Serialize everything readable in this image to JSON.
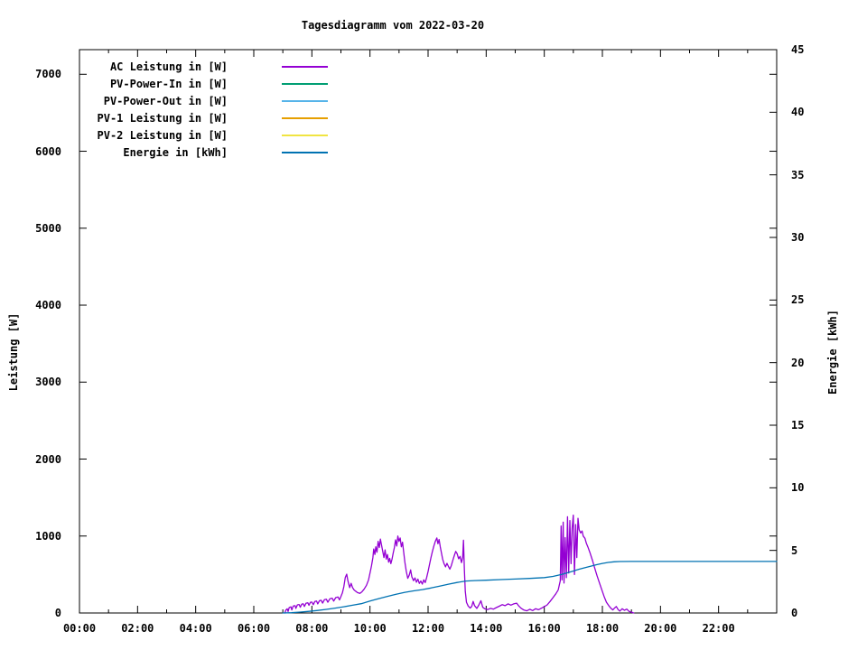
{
  "chart": {
    "title": "Tagesdiagramm vom 2022-03-20",
    "background_color": "#ffffff",
    "axis_color": "#000000"
  },
  "chart_data": {
    "type": "line",
    "title": "Tagesdiagramm vom 2022-03-20",
    "grid": false,
    "x_axis": {
      "unit": "time",
      "range_hours": [
        0,
        24
      ],
      "major_tick_every_hours": 2,
      "minor_tick_every_hours": 1,
      "tick_labels": [
        "00:00",
        "02:00",
        "04:00",
        "06:00",
        "08:00",
        "10:00",
        "12:00",
        "14:00",
        "16:00",
        "18:00",
        "20:00",
        "22:00"
      ]
    },
    "y1_axis": {
      "label": "Leistung [W]",
      "range": [
        0,
        7320
      ],
      "tick_values": [
        0,
        1000,
        2000,
        3000,
        4000,
        5000,
        6000,
        7000
      ],
      "tick_labels": [
        "0",
        "1000",
        "2000",
        "3000",
        "4000",
        "5000",
        "6000",
        "7000"
      ]
    },
    "y2_axis": {
      "label": "Energie [kWh]",
      "range": [
        0,
        45
      ],
      "tick_values": [
        0,
        5,
        10,
        15,
        20,
        25,
        30,
        35,
        40,
        45
      ],
      "tick_labels": [
        "0",
        "5",
        "10",
        "15",
        "20",
        "25",
        "30",
        "35",
        "40",
        "45"
      ]
    },
    "legend": {
      "position": "inside-top-left",
      "items": [
        {
          "label": "AC Leistung in [W]",
          "color": "#9400d3"
        },
        {
          "label": "PV-Power-In in [W]",
          "color": "#009e73"
        },
        {
          "label": "PV-Power-Out in [W]",
          "color": "#56b4e9"
        },
        {
          "label": "PV-1 Leistung in [W]",
          "color": "#e69f00"
        },
        {
          "label": "PV-2 Leistung in [W]",
          "color": "#f0e442"
        },
        {
          "label": "Energie in [kWh]",
          "color": "#0072b2"
        }
      ]
    },
    "series": [
      {
        "name": "AC Leistung in [W]",
        "color": "#9400d3",
        "axis": "y1",
        "x_unit": "hour",
        "points": [
          [
            7.07,
            0
          ],
          [
            7.1,
            35
          ],
          [
            7.15,
            55
          ],
          [
            7.18,
            20
          ],
          [
            7.22,
            70
          ],
          [
            7.28,
            80
          ],
          [
            7.31,
            40
          ],
          [
            7.36,
            90
          ],
          [
            7.42,
            95
          ],
          [
            7.45,
            60
          ],
          [
            7.5,
            105
          ],
          [
            7.56,
            110
          ],
          [
            7.6,
            75
          ],
          [
            7.65,
            115
          ],
          [
            7.7,
            120
          ],
          [
            7.74,
            85
          ],
          [
            7.8,
            128
          ],
          [
            7.86,
            132
          ],
          [
            7.9,
            100
          ],
          [
            7.95,
            138
          ],
          [
            8.0,
            142
          ],
          [
            8.05,
            108
          ],
          [
            8.1,
            150
          ],
          [
            8.16,
            155
          ],
          [
            8.2,
            118
          ],
          [
            8.26,
            160
          ],
          [
            8.32,
            165
          ],
          [
            8.37,
            128
          ],
          [
            8.43,
            172
          ],
          [
            8.5,
            178
          ],
          [
            8.55,
            140
          ],
          [
            8.62,
            185
          ],
          [
            8.7,
            192
          ],
          [
            8.75,
            155
          ],
          [
            8.82,
            200
          ],
          [
            8.9,
            208
          ],
          [
            8.95,
            170
          ],
          [
            9.0,
            215
          ],
          [
            9.05,
            260
          ],
          [
            9.1,
            340
          ],
          [
            9.15,
            460
          ],
          [
            9.2,
            505
          ],
          [
            9.24,
            420
          ],
          [
            9.3,
            330
          ],
          [
            9.35,
            385
          ],
          [
            9.4,
            330
          ],
          [
            9.45,
            300
          ],
          [
            9.5,
            285
          ],
          [
            9.57,
            265
          ],
          [
            9.65,
            255
          ],
          [
            9.72,
            275
          ],
          [
            9.8,
            310
          ],
          [
            9.88,
            360
          ],
          [
            9.95,
            430
          ],
          [
            10.0,
            520
          ],
          [
            10.05,
            610
          ],
          [
            10.1,
            720
          ],
          [
            10.13,
            830
          ],
          [
            10.17,
            760
          ],
          [
            10.2,
            860
          ],
          [
            10.24,
            790
          ],
          [
            10.28,
            930
          ],
          [
            10.32,
            850
          ],
          [
            10.36,
            960
          ],
          [
            10.4,
            880
          ],
          [
            10.44,
            800
          ],
          [
            10.48,
            720
          ],
          [
            10.52,
            820
          ],
          [
            10.56,
            700
          ],
          [
            10.6,
            760
          ],
          [
            10.64,
            660
          ],
          [
            10.68,
            710
          ],
          [
            10.72,
            640
          ],
          [
            10.76,
            700
          ],
          [
            10.8,
            780
          ],
          [
            10.84,
            850
          ],
          [
            10.88,
            950
          ],
          [
            10.92,
            870
          ],
          [
            10.96,
            1000
          ],
          [
            11.0,
            930
          ],
          [
            11.04,
            975
          ],
          [
            11.08,
            860
          ],
          [
            11.12,
            920
          ],
          [
            11.16,
            790
          ],
          [
            11.2,
            660
          ],
          [
            11.25,
            540
          ],
          [
            11.3,
            450
          ],
          [
            11.35,
            490
          ],
          [
            11.4,
            560
          ],
          [
            11.44,
            470
          ],
          [
            11.5,
            420
          ],
          [
            11.55,
            455
          ],
          [
            11.6,
            400
          ],
          [
            11.65,
            440
          ],
          [
            11.7,
            385
          ],
          [
            11.75,
            415
          ],
          [
            11.8,
            375
          ],
          [
            11.85,
            430
          ],
          [
            11.9,
            395
          ],
          [
            11.95,
            460
          ],
          [
            12.0,
            540
          ],
          [
            12.05,
            630
          ],
          [
            12.1,
            720
          ],
          [
            12.15,
            800
          ],
          [
            12.2,
            870
          ],
          [
            12.25,
            930
          ],
          [
            12.3,
            975
          ],
          [
            12.34,
            900
          ],
          [
            12.38,
            955
          ],
          [
            12.42,
            860
          ],
          [
            12.46,
            780
          ],
          [
            12.5,
            700
          ],
          [
            12.55,
            640
          ],
          [
            12.6,
            600
          ],
          [
            12.65,
            645
          ],
          [
            12.7,
            605
          ],
          [
            12.75,
            570
          ],
          [
            12.8,
            615
          ],
          [
            12.85,
            680
          ],
          [
            12.9,
            745
          ],
          [
            12.95,
            800
          ],
          [
            13.0,
            770
          ],
          [
            13.05,
            705
          ],
          [
            13.1,
            735
          ],
          [
            13.15,
            655
          ],
          [
            13.19,
            720
          ],
          [
            13.22,
            945
          ],
          [
            13.25,
            560
          ],
          [
            13.28,
            280
          ],
          [
            13.32,
            140
          ],
          [
            13.38,
            90
          ],
          [
            13.45,
            65
          ],
          [
            13.5,
            85
          ],
          [
            13.55,
            150
          ],
          [
            13.6,
            95
          ],
          [
            13.68,
            60
          ],
          [
            13.75,
            105
          ],
          [
            13.82,
            160
          ],
          [
            13.88,
            75
          ],
          [
            13.95,
            55
          ],
          [
            14.05,
            45
          ],
          [
            14.15,
            60
          ],
          [
            14.25,
            50
          ],
          [
            14.35,
            70
          ],
          [
            14.45,
            88
          ],
          [
            14.55,
            108
          ],
          [
            14.65,
            95
          ],
          [
            14.75,
            118
          ],
          [
            14.85,
            102
          ],
          [
            14.95,
            118
          ],
          [
            15.05,
            128
          ],
          [
            15.12,
            92
          ],
          [
            15.2,
            62
          ],
          [
            15.3,
            38
          ],
          [
            15.4,
            28
          ],
          [
            15.5,
            48
          ],
          [
            15.6,
            32
          ],
          [
            15.7,
            55
          ],
          [
            15.8,
            42
          ],
          [
            15.9,
            62
          ],
          [
            16.0,
            82
          ],
          [
            16.1,
            105
          ],
          [
            16.2,
            150
          ],
          [
            16.3,
            200
          ],
          [
            16.4,
            250
          ],
          [
            16.48,
            300
          ],
          [
            16.55,
            420
          ],
          [
            16.58,
            1130
          ],
          [
            16.61,
            430
          ],
          [
            16.65,
            1180
          ],
          [
            16.68,
            390
          ],
          [
            16.72,
            980
          ],
          [
            16.76,
            460
          ],
          [
            16.8,
            1250
          ],
          [
            16.84,
            520
          ],
          [
            16.88,
            1200
          ],
          [
            16.92,
            640
          ],
          [
            16.96,
            1100
          ],
          [
            17.0,
            1272
          ],
          [
            17.04,
            500
          ],
          [
            17.08,
            1150
          ],
          [
            17.12,
            720
          ],
          [
            17.16,
            1230
          ],
          [
            17.2,
            1080
          ],
          [
            17.25,
            1040
          ],
          [
            17.3,
            1065
          ],
          [
            17.34,
            1000
          ],
          [
            17.4,
            970
          ],
          [
            17.45,
            905
          ],
          [
            17.5,
            860
          ],
          [
            17.58,
            775
          ],
          [
            17.66,
            680
          ],
          [
            17.74,
            580
          ],
          [
            17.82,
            480
          ],
          [
            17.9,
            390
          ],
          [
            17.98,
            300
          ],
          [
            18.06,
            215
          ],
          [
            18.14,
            140
          ],
          [
            18.22,
            95
          ],
          [
            18.3,
            60
          ],
          [
            18.36,
            40
          ],
          [
            18.42,
            65
          ],
          [
            18.48,
            85
          ],
          [
            18.54,
            45
          ],
          [
            18.6,
            25
          ],
          [
            18.68,
            55
          ],
          [
            18.76,
            35
          ],
          [
            18.84,
            50
          ],
          [
            18.92,
            20
          ],
          [
            19.0,
            10
          ],
          [
            19.08,
            0
          ]
        ]
      },
      {
        "name": "PV-Power-In in [W]",
        "color": "#009e73",
        "axis": "y1",
        "x_unit": "hour",
        "points": []
      },
      {
        "name": "PV-Power-Out in [W]",
        "color": "#56b4e9",
        "axis": "y1",
        "x_unit": "hour",
        "points": []
      },
      {
        "name": "PV-1 Leistung in [W]",
        "color": "#e69f00",
        "axis": "y1",
        "x_unit": "hour",
        "points": []
      },
      {
        "name": "PV-2 Leistung in [W]",
        "color": "#f0e442",
        "axis": "y1",
        "x_unit": "hour",
        "points": []
      },
      {
        "name": "Energie in [kWh]",
        "color": "#0072b2",
        "axis": "y2",
        "x_unit": "hour",
        "points": [
          [
            7.0,
            0
          ],
          [
            7.3,
            0.02
          ],
          [
            7.6,
            0.07
          ],
          [
            7.9,
            0.13
          ],
          [
            8.2,
            0.2
          ],
          [
            8.5,
            0.29
          ],
          [
            8.8,
            0.39
          ],
          [
            9.1,
            0.5
          ],
          [
            9.4,
            0.62
          ],
          [
            9.7,
            0.74
          ],
          [
            10.0,
            0.95
          ],
          [
            10.3,
            1.15
          ],
          [
            10.6,
            1.33
          ],
          [
            10.9,
            1.5
          ],
          [
            11.2,
            1.65
          ],
          [
            11.5,
            1.77
          ],
          [
            11.8,
            1.87
          ],
          [
            12.1,
            2.0
          ],
          [
            12.4,
            2.15
          ],
          [
            12.7,
            2.3
          ],
          [
            13.0,
            2.44
          ],
          [
            13.3,
            2.55
          ],
          [
            13.6,
            2.59
          ],
          [
            14.0,
            2.62
          ],
          [
            14.5,
            2.67
          ],
          [
            15.0,
            2.71
          ],
          [
            15.5,
            2.76
          ],
          [
            16.0,
            2.83
          ],
          [
            16.3,
            2.92
          ],
          [
            16.6,
            3.08
          ],
          [
            16.9,
            3.28
          ],
          [
            17.2,
            3.5
          ],
          [
            17.5,
            3.68
          ],
          [
            17.8,
            3.86
          ],
          [
            18.0,
            3.96
          ],
          [
            18.2,
            4.04
          ],
          [
            18.4,
            4.09
          ],
          [
            18.6,
            4.11
          ],
          [
            19.0,
            4.12
          ],
          [
            20.0,
            4.12
          ],
          [
            22.0,
            4.12
          ],
          [
            24.0,
            4.12
          ]
        ]
      }
    ]
  }
}
